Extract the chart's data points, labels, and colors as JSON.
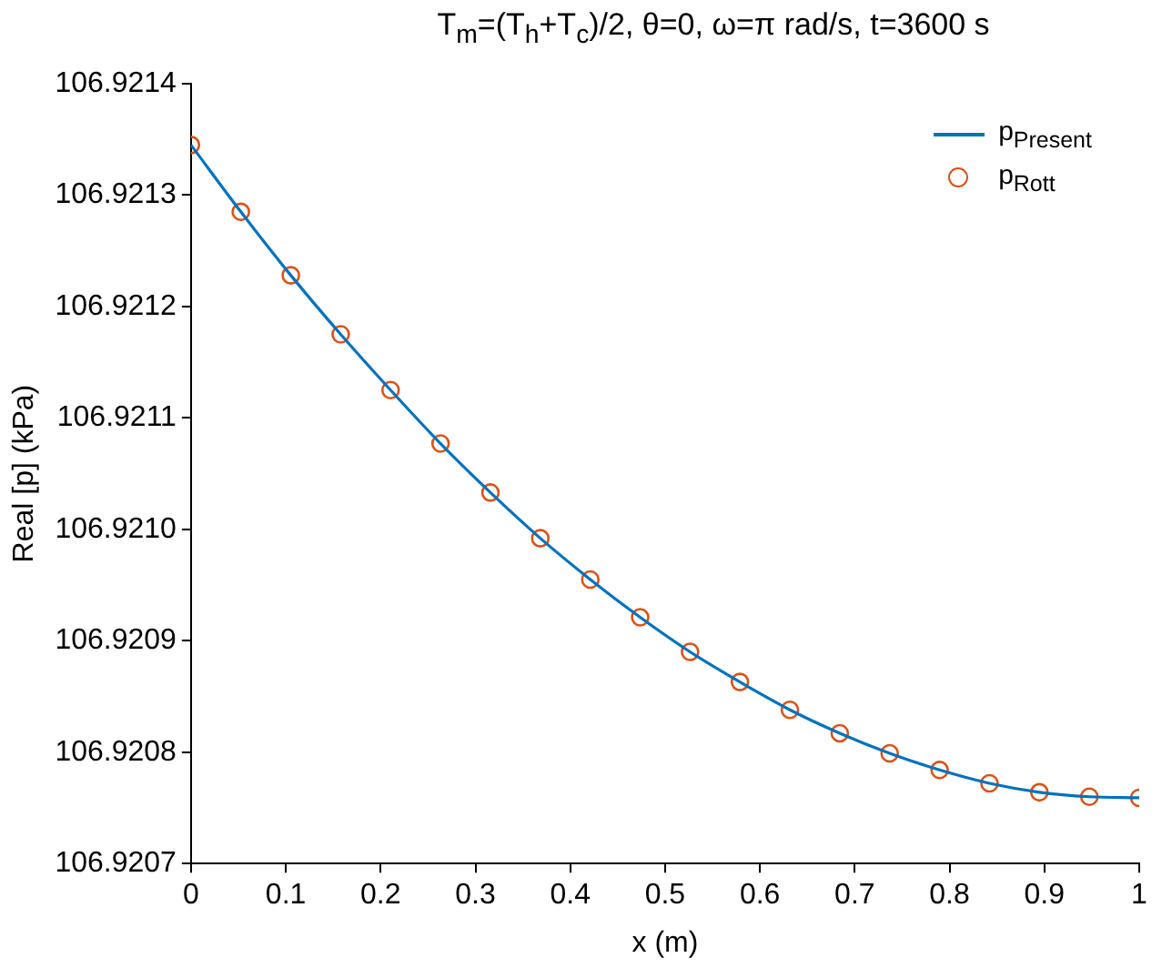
{
  "chart_data": {
    "type": "line",
    "title": "T$_{m}$=(T$_{h}$+T$_{c}$)/2, θ=0, ω=π rad/s, t=3600 s",
    "xlabel": "x (m)",
    "ylabel": "Real [p] (kPa)",
    "x": [
      0,
      0.0526,
      0.1053,
      0.1579,
      0.2105,
      0.2632,
      0.3158,
      0.3684,
      0.4211,
      0.4737,
      0.5263,
      0.5789,
      0.6316,
      0.6842,
      0.7368,
      0.7895,
      0.8421,
      0.8947,
      0.9474,
      1
    ],
    "series": [
      {
        "name": "p$_{Present}$",
        "type": "line",
        "color": "#0072bd",
        "marker": "none",
        "values": [
          106.921345,
          106.921285,
          106.921228,
          106.921175,
          106.921125,
          106.921077,
          106.921033,
          106.920992,
          106.920955,
          106.920921,
          106.92089,
          106.920863,
          106.920838,
          106.920817,
          106.920799,
          106.920784,
          106.920772,
          106.920764,
          106.92076,
          106.920759
        ]
      },
      {
        "name": "p$_{Rott}$",
        "type": "scatter",
        "color": "#d95319",
        "marker": "circle",
        "values": [
          106.921345,
          106.921285,
          106.921228,
          106.921175,
          106.921125,
          106.921077,
          106.921033,
          106.920992,
          106.920955,
          106.920921,
          106.92089,
          106.920863,
          106.920838,
          106.920817,
          106.920799,
          106.920784,
          106.920772,
          106.920764,
          106.92076,
          106.920759
        ]
      }
    ],
    "xlim": [
      0,
      1
    ],
    "xticks": [
      0,
      0.1,
      0.2,
      0.3,
      0.4,
      0.5,
      0.6,
      0.7,
      0.8,
      0.9,
      1
    ],
    "ylim": [
      106.9207,
      106.9214
    ],
    "yticks": [
      106.9207,
      106.9208,
      106.9209,
      {
        "value": 106.921,
        "label": "106.9210"
      },
      106.9211,
      106.9212,
      106.9213,
      106.9214
    ],
    "grid": false,
    "legend": "top right"
  }
}
